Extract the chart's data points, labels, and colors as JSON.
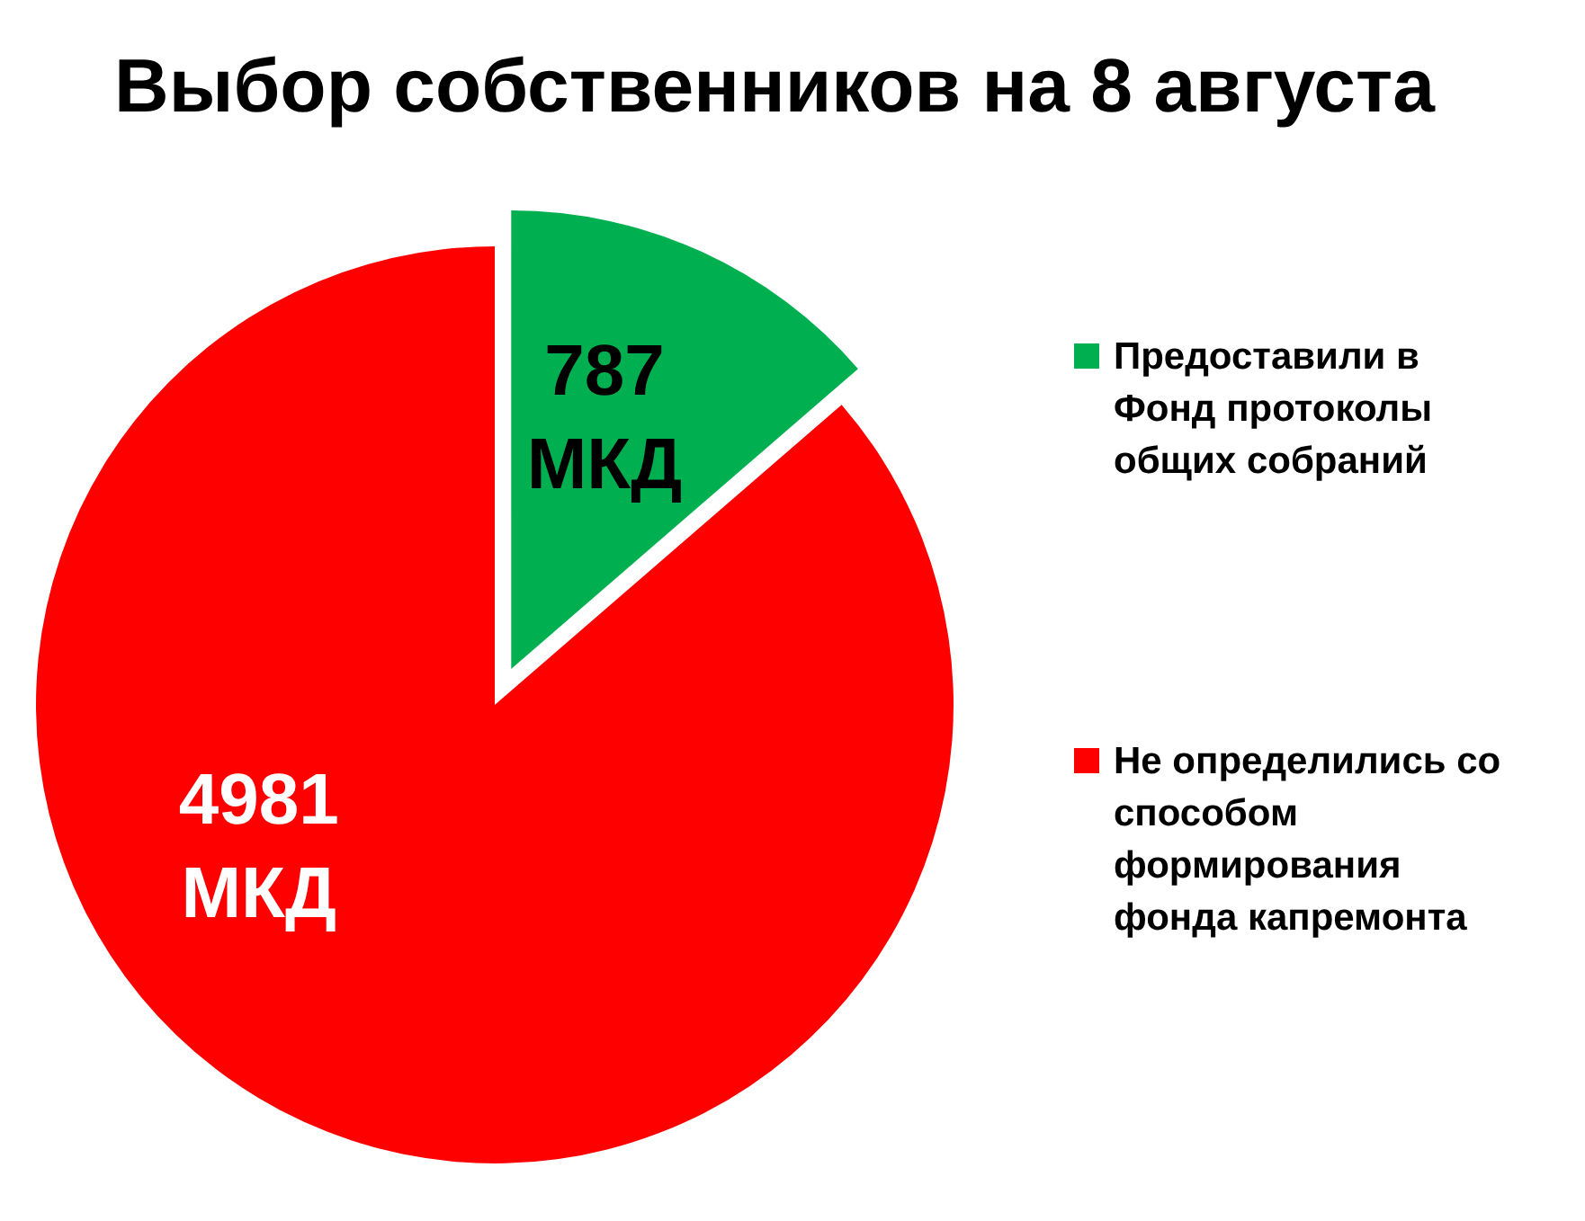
{
  "chart_data": {
    "type": "pie",
    "title": "Выбор собственников на 8 августа",
    "categories": [
      "Предоставили в Фонд протоколы общих собраний",
      "Не определились со способом формирования фонда капремонта"
    ],
    "values": [
      787,
      4981
    ],
    "colors": [
      "#00b050",
      "#ff0000"
    ],
    "value_labels": [
      "787 МКД",
      "4981 МКД"
    ],
    "legend": "right"
  }
}
